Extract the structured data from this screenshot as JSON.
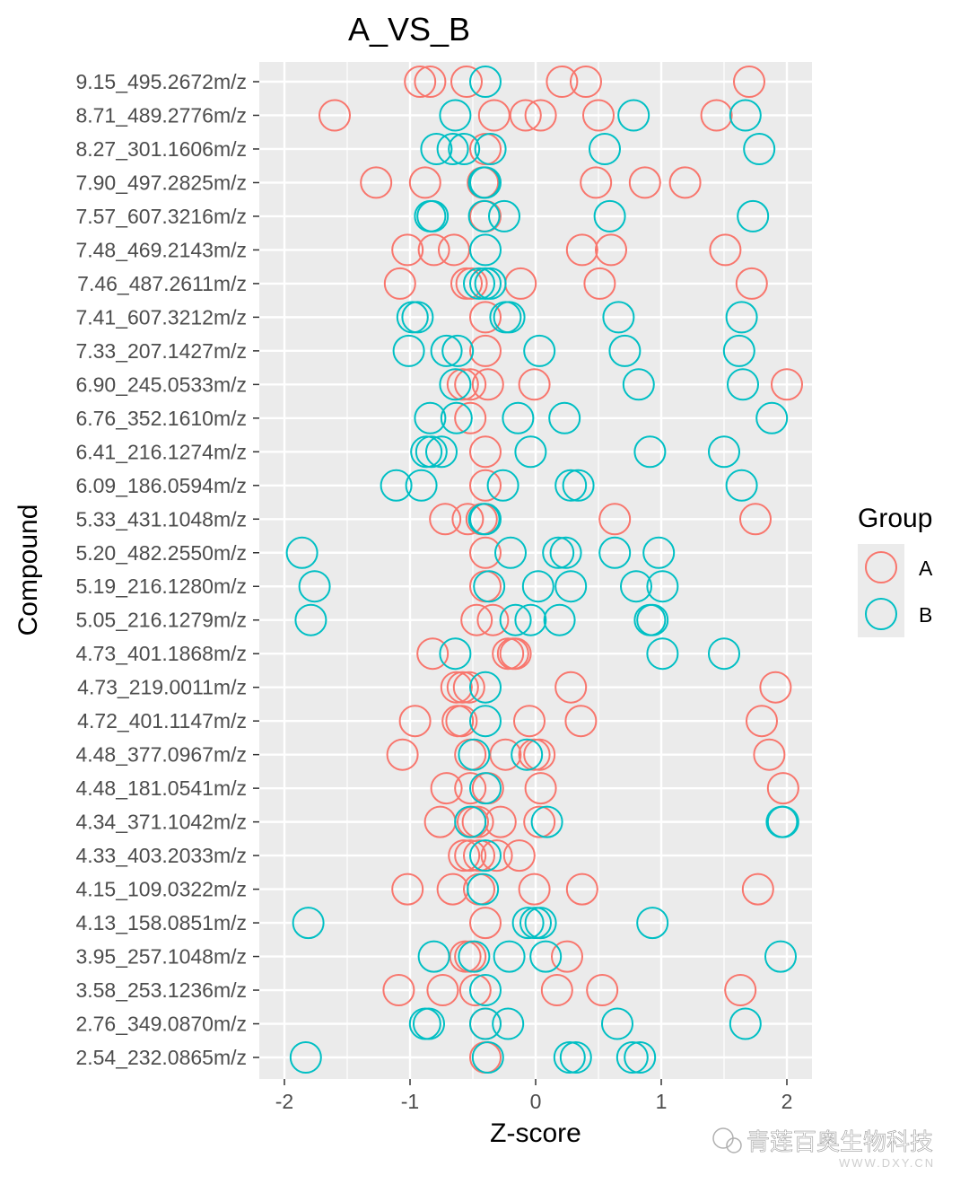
{
  "chart_data": {
    "type": "scatter",
    "title": "A_VS_B",
    "xlabel": "Z-score",
    "ylabel": "Compound",
    "xlim": [
      -2.2,
      2.2
    ],
    "xticks": [
      -2,
      -1,
      0,
      1,
      2
    ],
    "xtick_labels": [
      "-2",
      "-1",
      "0",
      "1",
      "2"
    ],
    "grid": true,
    "marker": "open-circle",
    "legend": {
      "title": "Group",
      "position": "right",
      "entries": [
        {
          "name": "A",
          "color": "#F8766D"
        },
        {
          "name": "B",
          "color": "#00BFC4"
        }
      ]
    },
    "compounds": [
      "9.15_495.2672m/z",
      "8.71_489.2776m/z",
      "8.27_301.1606m/z",
      "7.90_497.2825m/z",
      "7.57_607.3216m/z",
      "7.48_469.2143m/z",
      "7.46_487.2611m/z",
      "7.41_607.3212m/z",
      "7.33_207.1427m/z",
      "6.90_245.0533m/z",
      "6.76_352.1610m/z",
      "6.41_216.1274m/z",
      "6.09_186.0594m/z",
      "5.33_431.1048m/z",
      "5.20_482.2550m/z",
      "5.19_216.1280m/z",
      "5.05_216.1279m/z",
      "4.73_401.1868m/z",
      "4.73_219.0011m/z",
      "4.72_401.1147m/z",
      "4.48_377.0967m/z",
      "4.48_181.0541m/z",
      "4.34_371.1042m/z",
      "4.33_403.2033m/z",
      "4.15_109.0322m/z",
      "4.13_158.0851m/z",
      "3.95_257.1048m/z",
      "3.58_253.1236m/z",
      "2.76_349.0870m/z",
      "2.54_232.0865m/z"
    ],
    "series": [
      {
        "name": "A",
        "color": "#F8766D",
        "values": [
          [
            -0.92,
            -0.84,
            -0.55,
            0.21,
            0.4,
            1.7
          ],
          [
            -1.6,
            -0.33,
            -0.08,
            0.04,
            0.5,
            1.44
          ],
          [
            -0.4
          ],
          [
            -1.27,
            -0.88,
            -0.42,
            0.48,
            0.87,
            1.19
          ],
          [
            -0.4
          ],
          [
            -1.02,
            -0.81,
            -0.65,
            0.37,
            0.6,
            1.51
          ],
          [
            -1.08,
            -0.55,
            -0.51,
            -0.12,
            0.51,
            1.72
          ],
          [
            -0.4
          ],
          [
            -0.4
          ],
          [
            -0.58,
            -0.52,
            -0.38,
            -0.01,
            2.0
          ],
          [
            -0.52
          ],
          [
            -0.4
          ],
          [
            -0.4
          ],
          [
            -0.72,
            -0.54,
            -0.43,
            0.63,
            1.75
          ],
          [
            -0.4
          ],
          [
            -0.4
          ],
          [
            -0.47,
            -0.34
          ],
          [
            -0.82,
            -0.22,
            -0.18,
            -0.16
          ],
          [
            -0.63,
            -0.58,
            -0.53,
            0.28,
            1.91
          ],
          [
            -0.96,
            -0.62,
            -0.59,
            -0.05,
            0.36,
            1.8
          ],
          [
            -1.06,
            -0.52,
            -0.24,
            -0.01,
            0.03,
            1.86
          ],
          [
            -0.71,
            -0.52,
            -0.38,
            0.04,
            1.97
          ],
          [
            -0.76,
            -0.5,
            -0.46,
            -0.28,
            0.03
          ],
          [
            -0.57,
            -0.52,
            -0.45,
            -0.31,
            -0.13
          ],
          [
            -1.02,
            -0.66,
            -0.45,
            -0.01,
            0.37,
            1.77
          ],
          [
            -0.4
          ],
          [
            -0.56,
            -0.52,
            0.25
          ],
          [
            -1.09,
            -0.74,
            -0.48,
            0.17,
            0.53,
            1.63
          ],
          [
            -0.4
          ],
          [
            -0.4
          ]
        ]
      },
      {
        "name": "B",
        "color": "#00BFC4",
        "values": [
          [
            -0.4
          ],
          [
            -0.64,
            0.78,
            1.67
          ],
          [
            -0.79,
            -0.66,
            -0.57,
            -0.36,
            0.55,
            1.78
          ],
          [
            -0.41,
            -0.4
          ],
          [
            -0.84,
            -0.82,
            -0.41,
            -0.25,
            0.59,
            1.73
          ],
          [
            -0.4
          ],
          [
            -0.45,
            -0.4,
            -0.36
          ],
          [
            -0.98,
            -0.94,
            -0.24,
            -0.21,
            0.66,
            1.64
          ],
          [
            -1.01,
            -0.71,
            -0.62,
            0.03,
            0.71,
            1.62
          ],
          [
            -0.64,
            0.82,
            1.65
          ],
          [
            -0.84,
            -0.63,
            -0.14,
            0.23,
            1.88
          ],
          [
            -0.87,
            -0.83,
            -0.75,
            -0.04,
            0.91,
            1.5
          ],
          [
            -1.11,
            -0.91,
            -0.26,
            0.28,
            0.34,
            1.64
          ],
          [
            -0.41,
            -0.4
          ],
          [
            -1.86,
            -0.2,
            0.18,
            0.24,
            0.63,
            0.98
          ],
          [
            -1.76,
            -0.37,
            0.02,
            0.28,
            0.8,
            1.01
          ],
          [
            -1.79,
            -0.16,
            -0.04,
            0.19,
            0.91,
            0.93
          ],
          [
            -0.64,
            1.01,
            1.5
          ],
          [
            -0.4
          ],
          [
            -0.4
          ],
          [
            -0.49,
            -0.07
          ],
          [
            -0.4
          ],
          [
            -0.52,
            0.09,
            1.96,
            1.97
          ],
          [
            -0.4
          ],
          [
            -0.42
          ],
          [
            -1.81,
            -0.06,
            0.0,
            0.04,
            0.93
          ],
          [
            -0.81,
            -0.49,
            -0.21,
            0.08,
            1.95
          ],
          [
            -0.4
          ],
          [
            -0.88,
            -0.85,
            -0.4,
            -0.22,
            0.65,
            1.67
          ],
          [
            -1.83,
            -0.38,
            0.27,
            0.32,
            0.77,
            0.83
          ]
        ]
      }
    ]
  },
  "watermark": {
    "text": "青莲百奥生物科技",
    "site": "WWW.DXY.CN"
  }
}
